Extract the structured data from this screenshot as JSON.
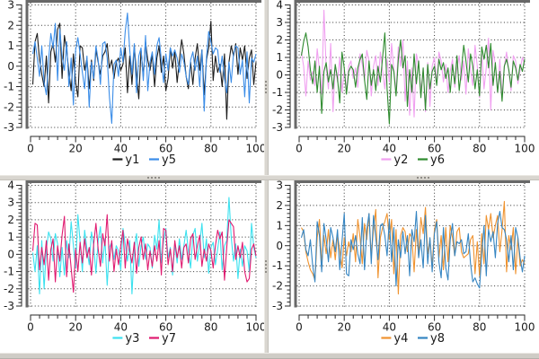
{
  "window": {
    "background": "#ffffff",
    "splitter_color": "#d9d6d0"
  },
  "chart_data": {
    "type": "line",
    "layout": "2x2-grid",
    "grid": {
      "style": "dotted",
      "color": "#333333",
      "on": true
    },
    "legend_position": "below-x-axis",
    "x": {
      "min": 0,
      "max": 100,
      "ticks": [
        0,
        20,
        40,
        60,
        80,
        100
      ],
      "minor_step": 4
    },
    "y_minor_step": 0.2,
    "axis_color": "#2a2a2a",
    "frame_color": "#686868",
    "tick_label_color": "#1a1a1a",
    "panels": [
      {
        "position": "top-left",
        "ylim": [
          -3,
          3
        ],
        "yticks": [
          -3,
          -2,
          -1,
          0,
          1,
          2,
          3
        ],
        "series": [
          {
            "name": "y1",
            "color": "#1c1c1c",
            "values": [
              -0.9,
              1.2,
              1.6,
              0.3,
              -0.4,
              -1.0,
              0.5,
              -1.8,
              0.7,
              1.1,
              0.2,
              1.8,
              2.1,
              -0.6,
              1.5,
              0.8,
              -0.3,
              -1.2,
              0.6,
              -0.8,
              -1.5,
              1.0,
              0.9,
              -0.2,
              0.4,
              -1.1,
              0.3,
              -0.7,
              0.8,
              0.2,
              -0.4,
              0.5,
              0.7,
              1.1,
              -0.1,
              0.3,
              -0.6,
              0.2,
              0.4,
              -0.2,
              0.1,
              0.9,
              -1.3,
              0.5,
              -0.9,
              1.0,
              -0.4,
              -1.6,
              0.8,
              -0.5,
              1.2,
              0.3,
              -0.2,
              0.6,
              -1.0,
              0.4,
              1.0,
              -0.3,
              0.5,
              -1.2,
              -0.6,
              0.9,
              -0.1,
              0.7,
              -0.8,
              0.3,
              1.3,
              0.6,
              -0.5,
              -1.1,
              0.2,
              -0.9,
              0.4,
              1.1,
              -0.2,
              0.8,
              -1.4,
              0.3,
              0.9,
              2.2,
              -0.7,
              0.5,
              -0.3,
              0.1,
              -1.0,
              0.6,
              -2.6,
              0.2,
              1.0,
              0.5,
              1.1,
              -0.4,
              0.9,
              0.3,
              1.0,
              -0.6,
              0.4,
              0.8,
              -0.9,
              0.2
            ]
          },
          {
            "name": "y5",
            "color": "#3b8de8",
            "values": [
              0.6,
              1.2,
              0.4,
              -0.5,
              1.0,
              -0.8,
              -1.4,
              0.3,
              1.6,
              0.9,
              2.1,
              -0.7,
              1.8,
              0.5,
              -0.2,
              1.2,
              -1.0,
              0.4,
              -1.9,
              0.8,
              1.4,
              0.6,
              -0.3,
              -1.1,
              0.5,
              -2.0,
              0.2,
              -0.6,
              1.0,
              0.3,
              -0.9,
              1.1,
              1.2,
              0.4,
              -1.5,
              -2.8,
              0.1,
              0.3,
              -0.5,
              0.9,
              0.2,
              1.7,
              2.6,
              0.8,
              -0.4,
              1.1,
              -1.3,
              0.5,
              0.9,
              -0.7,
              1.5,
              -1.2,
              0.2,
              0.7,
              -0.4,
              1.0,
              1.4,
              0.3,
              -0.8,
              0.6,
              -0.2,
              0.9,
              0.5,
              0.8,
              0.4,
              -0.3,
              0.6,
              0.2,
              -0.5,
              -0.9,
              0.3,
              0.7,
              -0.2,
              0.5,
              -1.0,
              0.8,
              -2.2,
              0.4,
              1.7,
              1.2,
              0.6,
              0.9,
              0.8,
              -0.3,
              0.5,
              -0.6,
              -1.3,
              0.2,
              -0.8,
              0.6,
              1.0,
              0.9,
              -0.4,
              0.3,
              -1.5,
              0.7,
              -1.8,
              0.4,
              0.2,
              0.6
            ]
          }
        ]
      },
      {
        "position": "top-right",
        "ylim": [
          -3,
          4
        ],
        "yticks": [
          -3,
          -2,
          -1,
          0,
          1,
          2,
          3,
          4
        ],
        "series": [
          {
            "name": "y2",
            "color": "#f0a0f0",
            "values": [
              1.3,
              0.5,
              -1.2,
              0.8,
              -0.3,
              0.2,
              -0.6,
              1.5,
              0.3,
              -1.1,
              3.7,
              0.4,
              -0.8,
              1.8,
              -2.1,
              0.6,
              -0.4,
              1.0,
              -1.0,
              0.3,
              -0.9,
              0.5,
              0.8,
              -0.2,
              0.4,
              -0.7,
              1.2,
              0.6,
              -0.3,
              1.4,
              0.8,
              -1.2,
              0.5,
              1.1,
              -0.6,
              1.3,
              0.2,
              -0.8,
              0.9,
              -0.4,
              1.8,
              0.3,
              -1.0,
              1.6,
              0.5,
              2.0,
              -1.5,
              0.8,
              -2.3,
              0.4,
              -2.4,
              1.2,
              0.6,
              -0.9,
              0.3,
              -2.1,
              0.7,
              -1.8,
              0.5,
              1.0,
              -0.5,
              1.3,
              0.8,
              -0.4,
              0.6,
              -1.0,
              0.2,
              0.9,
              -0.7,
              0.4,
              1.1,
              -0.3,
              0.8,
              -1.1,
              1.5,
              0.3,
              -0.6,
              1.7,
              0.5,
              -1.3,
              1.2,
              -0.8,
              0.4,
              2.1,
              -2.0,
              1.4,
              0.6,
              -1.0,
              0.9,
              -1.2,
              0.5,
              1.3,
              0.2,
              -0.9,
              1.1,
              0.8,
              -0.5,
              0.3,
              1.0,
              0.6
            ]
          },
          {
            "name": "y6",
            "color": "#2f8b2f",
            "values": [
              1.1,
              1.9,
              2.4,
              1.6,
              0.3,
              -0.5,
              0.8,
              -1.0,
              0.5,
              -2.2,
              0.2,
              0.7,
              -0.4,
              0.3,
              -0.8,
              0.6,
              -0.2,
              -1.6,
              1.3,
              0.4,
              -1.1,
              0.2,
              0.5,
              0.3,
              -0.7,
              0.4,
              0.9,
              1.2,
              -0.3,
              -1.4,
              0.8,
              -0.6,
              0.3,
              -0.9,
              0.5,
              -0.4,
              1.0,
              2.4,
              -0.8,
              -2.8,
              0.6,
              0.2,
              -1.2,
              0.9,
              2.0,
              0.4,
              1.1,
              -1.8,
              0.3,
              -1.0,
              1.2,
              -0.5,
              0.8,
              -1.3,
              0.4,
              -2.0,
              0.6,
              -0.8,
              0.2,
              0.5,
              -0.6,
              0.9,
              0.3,
              0.7,
              -0.2,
              0.4,
              -1.0,
              0.6,
              -0.5,
              1.1,
              -0.9,
              0.3,
              1.7,
              0.8,
              -0.4,
              1.2,
              0.5,
              -0.8,
              0.3,
              -1.2,
              1.6,
              0.9,
              1.7,
              0.4,
              1.8,
              -0.6,
              0.7,
              -1.0,
              0.2,
              -1.5,
              0.5,
              0.9,
              0.3,
              -0.7,
              0.8,
              0.4,
              -0.3,
              0.6,
              0.2,
              0.9
            ]
          }
        ]
      },
      {
        "position": "bottom-left",
        "ylim": [
          -3,
          4
        ],
        "yticks": [
          -3,
          -2,
          -1,
          0,
          1,
          2,
          3,
          4
        ],
        "series": [
          {
            "name": "y3",
            "color": "#3ce1ef",
            "values": [
              0.1,
              -1.0,
              0.5,
              -2.3,
              0.8,
              -2.0,
              0.3,
              1.3,
              0.9,
              -0.4,
              1.2,
              0.6,
              -1.3,
              0.4,
              -1.2,
              0.8,
              -0.2,
              1.9,
              0.5,
              -0.8,
              2.3,
              0.7,
              -1.0,
              1.4,
              0.3,
              -0.6,
              1.3,
              0.5,
              -1.1,
              0.8,
              1.6,
              -0.5,
              0.9,
              -1.8,
              0.4,
              0.7,
              -0.3,
              0.5,
              0.2,
              -0.9,
              1.5,
              0.6,
              -0.4,
              0.8,
              -2.3,
              0.3,
              1.2,
              -0.7,
              0.5,
              1.0,
              -0.3,
              0.6,
              0.4,
              -0.8,
              1.1,
              0.3,
              2.0,
              -0.5,
              0.8,
              1.5,
              -0.2,
              0.4,
              -1.2,
              0.6,
              -0.5,
              0.9,
              -0.3,
              0.5,
              1.4,
              0.2,
              -0.8,
              1.1,
              1.5,
              -0.4,
              0.6,
              1.8,
              -0.2,
              0.9,
              -1.1,
              0.4,
              0.7,
              -0.6,
              0.3,
              1.3,
              -0.9,
              0.5,
              0.8,
              3.3,
              1.0,
              -0.4,
              0.6,
              -1.4,
              0.3,
              -0.7,
              0.5,
              0.2,
              -1.0,
              1.8,
              0.4,
              -0.2
            ]
          },
          {
            "name": "y7",
            "color": "#e01a70",
            "values": [
              0.2,
              1.8,
              1.7,
              -0.9,
              0.4,
              -0.6,
              0.8,
              -1.5,
              0.3,
              0.9,
              -1.6,
              0.5,
              -0.4,
              1.1,
              2.2,
              -1.3,
              0.6,
              -0.8,
              -2.2,
              0.3,
              -1.0,
              0.7,
              -0.5,
              0.9,
              -0.2,
              0.4,
              -1.2,
              0.6,
              1.8,
              0.3,
              -0.7,
              1.2,
              0.5,
              2.3,
              -0.4,
              0.8,
              -1.0,
              0.3,
              -0.6,
              0.5,
              1.4,
              -0.8,
              0.9,
              0.2,
              -0.5,
              0.7,
              -1.1,
              0.4,
              1.0,
              -0.3,
              0.6,
              -0.9,
              0.2,
              -0.7,
              0.5,
              -0.4,
              0.8,
              -1.2,
              1.5,
              1.4,
              -0.6,
              0.3,
              -1.0,
              0.8,
              -0.2,
              0.5,
              -0.8,
              0.4,
              0.6,
              -0.5,
              0.9,
              1.2,
              -0.3,
              0.5,
              1.1,
              -0.7,
              0.3,
              -0.4,
              0.6,
              0.2,
              -0.8,
              0.5,
              1.4,
              0.9,
              1.3,
              -1.5,
              0.4,
              2.0,
              1.8,
              1.6,
              -0.3,
              0.5,
              -0.2,
              0.7,
              -1.0,
              -1.6,
              -1.4,
              0.3,
              0.6,
              -0.1
            ]
          }
        ]
      },
      {
        "position": "bottom-right",
        "ylim": [
          -3,
          3
        ],
        "yticks": [
          -3,
          -2,
          -1,
          0,
          1,
          2,
          3
        ],
        "series": [
          {
            "name": "y4",
            "color": "#ef9330",
            "values": [
              0.9,
              0.7,
              -0.3,
              -0.8,
              -1.2,
              -1.4,
              -1.7,
              0.4,
              1.3,
              -0.9,
              0.5,
              -0.4,
              0.8,
              -0.6,
              0.3,
              -0.7,
              0.5,
              -0.2,
              -1.1,
              0.4,
              -0.5,
              0.2,
              -0.3,
              0.6,
              -0.8,
              1.3,
              0.4,
              -0.9,
              1.1,
              0.3,
              1.6,
              -0.5,
              0.8,
              1.8,
              -1.6,
              0.4,
              0.9,
              1.2,
              1.6,
              0.3,
              1.3,
              -1.4,
              0.8,
              -2.4,
              0.5,
              0.9,
              0.7,
              -0.3,
              0.6,
              0.4,
              -1.3,
              0.8,
              -0.5,
              1.4,
              0.6,
              1.9,
              -0.4,
              0.3,
              -1.0,
              0.8,
              1.3,
              -0.6,
              0.5,
              -1.2,
              0.9,
              -0.8,
              1.0,
              0.4,
              -0.5,
              0.7,
              0.9,
              -0.3,
              -0.6,
              -0.5,
              -0.4,
              0.3,
              0.5,
              -1.4,
              0.2,
              -1.5,
              0.6,
              -0.9,
              1.5,
              0.8,
              1.6,
              0.4,
              1.0,
              1.5,
              -0.3,
              0.8,
              2.2,
              -1.3,
              0.5,
              -0.2,
              0.9,
              -1.4,
              0.4,
              -1.0,
              -0.7,
              -0.9
            ]
          },
          {
            "name": "y8",
            "color": "#3585c2",
            "values": [
              0.4,
              0.8,
              -0.2,
              -0.5,
              0.3,
              -1.0,
              -1.8,
              1.2,
              0.5,
              -1.3,
              1.1,
              0.3,
              -0.8,
              0.9,
              0.4,
              -0.3,
              0.8,
              -1.2,
              0.2,
              1.6,
              -1.4,
              -1.5,
              0.3,
              -0.2,
              0.5,
              -0.4,
              -0.9,
              1.4,
              -1.2,
              0.8,
              1.6,
              -0.9,
              1.5,
              0.4,
              -0.7,
              1.0,
              1.1,
              0.5,
              -0.5,
              1.3,
              -0.8,
              0.9,
              -2.0,
              0.3,
              -0.6,
              0.7,
              -0.4,
              0.5,
              -1.5,
              0.8,
              0.2,
              1.7,
              -0.6,
              0.3,
              -1.1,
              1.5,
              -0.9,
              0.4,
              -1.3,
              0.6,
              1.2,
              -0.8,
              -1.6,
              0.9,
              -1.1,
              -1.7,
              0.3,
              1.1,
              -0.5,
              0.2,
              0.1,
              0.3,
              -0.4,
              -0.3,
              0.6,
              -0.9,
              -1.8,
              -1.6,
              -1.9,
              -2.1,
              -0.4,
              1.0,
              -1.5,
              0.8,
              0.2,
              0.7,
              -0.6,
              1.1,
              1.7,
              0.9,
              0.8,
              0.3,
              -0.8,
              0.5,
              -1.2,
              0.9,
              0.4,
              -0.6,
              -1.3,
              -0.5
            ]
          }
        ]
      }
    ]
  }
}
